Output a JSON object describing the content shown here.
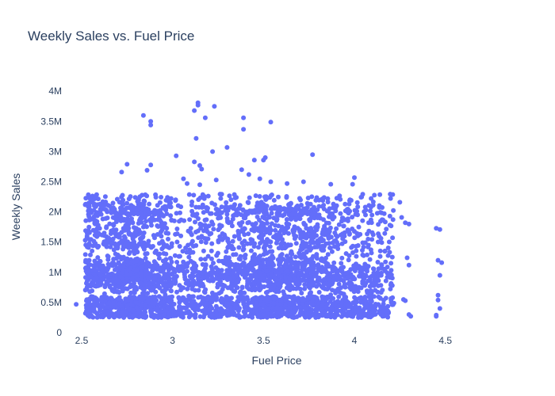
{
  "chart_data": {
    "type": "scatter",
    "title": "Weekly Sales vs. Fuel Price",
    "xlabel": "Fuel Price",
    "ylabel": "Weekly Sales",
    "xlim": [
      2.4,
      4.75
    ],
    "ylim": [
      0,
      4200000
    ],
    "x_ticks": [
      2.5,
      3,
      3.5,
      4,
      4.5
    ],
    "x_tick_labels": [
      "2.5",
      "3",
      "3.5",
      "4",
      "4.5"
    ],
    "y_ticks": [
      0,
      500000,
      1000000,
      1500000,
      2000000,
      2500000,
      3000000,
      3500000,
      4000000
    ],
    "y_tick_labels": [
      "0",
      "0.5M",
      "1M",
      "1.5M",
      "2M",
      "2.5M",
      "3M",
      "3.5M",
      "4M"
    ],
    "grid": false,
    "marker_color": "#636efa",
    "series": [
      {
        "x": [
          2.47,
          2.52,
          2.53,
          2.55,
          2.52,
          2.54,
          2.57,
          2.6,
          2.63,
          2.84,
          2.88,
          2.88,
          3.12,
          3.14,
          3.14,
          3.13,
          3.18,
          3.23,
          3.39,
          3.39,
          3.54,
          3.77,
          3.02,
          3.12,
          3.15,
          3.16,
          3.22,
          3.3,
          3.45,
          3.51,
          3.5,
          3.38,
          2.88,
          2.86,
          2.75,
          2.72,
          3.06,
          3.08,
          3.15,
          3.24,
          3.42,
          3.48,
          3.54,
          3.63,
          3.72,
          3.87,
          4.0,
          3.99,
          4.06,
          4.25,
          4.26,
          4.28,
          4.3,
          4.45,
          4.47,
          4.46,
          4.48,
          4.47,
          4.46,
          4.29,
          4.3,
          4.28,
          4.27,
          4.31,
          4.3,
          4.45,
          4.47,
          4.46,
          4.45
        ],
        "y": [
          470000,
          2120000,
          1600000,
          920000,
          1530000,
          2150000,
          2100000,
          2130000,
          2120000,
          3600000,
          3500000,
          3440000,
          3680000,
          3810000,
          3770000,
          3220000,
          3560000,
          3750000,
          3560000,
          3370000,
          3490000,
          2950000,
          2930000,
          2830000,
          2770000,
          2710000,
          3000000,
          3070000,
          2860000,
          2900000,
          2860000,
          2700000,
          2780000,
          2690000,
          2790000,
          2660000,
          2550000,
          2470000,
          2450000,
          2530000,
          2620000,
          2550000,
          2500000,
          2470000,
          2500000,
          2460000,
          2570000,
          2460000,
          2080000,
          2160000,
          1910000,
          1820000,
          1800000,
          1730000,
          1710000,
          1200000,
          1160000,
          950000,
          540000,
          1240000,
          1120000,
          530000,
          550000,
          270000,
          300000,
          290000,
          400000,
          620000,
          270000
        ]
      }
    ]
  }
}
